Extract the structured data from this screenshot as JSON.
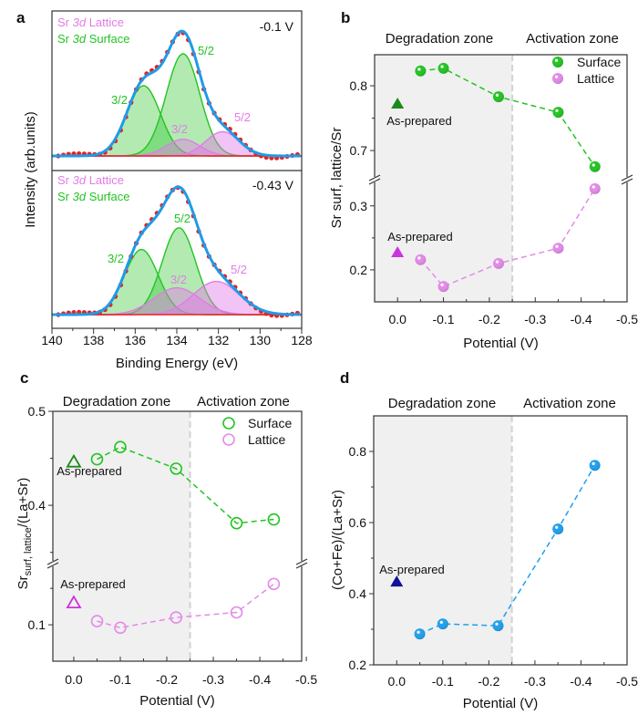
{
  "figure": {
    "panel_labels": [
      "a",
      "b",
      "c",
      "d"
    ]
  },
  "chart_data": [
    {
      "panel": "a",
      "type": "line",
      "xlabel": "Binding Energy (eV)",
      "ylabel": "Intensity (arb.units)",
      "xlim": [
        140,
        128
      ],
      "x_ticks": [
        140,
        138,
        136,
        134,
        132,
        130,
        128
      ],
      "x_tick_labels": [
        "140",
        "138",
        "136",
        "134",
        "132",
        "130",
        "128"
      ],
      "colors": {
        "surface": "#22c422",
        "lattice": "#e37be8",
        "envelope": "#1e9be8",
        "data": "#e52222"
      },
      "subplots": [
        {
          "potential_label": "-0.1 V",
          "legend": [
            {
              "prefix": "Sr ",
              "orbital": "3d",
              "suffix": " Lattice",
              "component": "lattice"
            },
            {
              "prefix": "Sr ",
              "orbital": "3d",
              "suffix": " Surface",
              "component": "surface"
            }
          ],
          "peaks": [
            {
              "component": "surface",
              "label": "3/2",
              "center": 135.6,
              "intensity": 0.55,
              "fwhm": 1.9
            },
            {
              "component": "surface",
              "label": "5/2",
              "center": 133.7,
              "intensity": 0.8,
              "fwhm": 1.9
            },
            {
              "component": "lattice",
              "label": "3/2",
              "center": 133.7,
              "intensity": 0.13,
              "fwhm": 1.9
            },
            {
              "component": "lattice",
              "label": "5/2",
              "center": 131.8,
              "intensity": 0.19,
              "fwhm": 1.9
            }
          ]
        },
        {
          "potential_label": "-0.43 V",
          "legend": [
            {
              "prefix": "Sr ",
              "orbital": "3d",
              "suffix": " Lattice",
              "component": "lattice"
            },
            {
              "prefix": "Sr ",
              "orbital": "3d",
              "suffix": " Surface",
              "component": "surface"
            }
          ],
          "peaks": [
            {
              "component": "surface",
              "label": "3/2",
              "center": 135.7,
              "intensity": 0.51,
              "fwhm": 1.9
            },
            {
              "component": "surface",
              "label": "5/2",
              "center": 133.9,
              "intensity": 0.68,
              "fwhm": 1.9
            },
            {
              "component": "lattice",
              "label": "3/2",
              "center": 134.0,
              "intensity": 0.21,
              "fwhm": 2.6
            },
            {
              "component": "lattice",
              "label": "5/2",
              "center": 132.1,
              "intensity": 0.26,
              "fwhm": 2.6
            }
          ]
        }
      ]
    },
    {
      "panel": "b",
      "type": "line",
      "xlabel": "Potential (V)",
      "ylabel": "Sr surf, lattice/Sr",
      "zones": {
        "degradation": "Degradation zone",
        "activation": "Activation zone",
        "boundary": -0.25
      },
      "xlim": [
        0.05,
        -0.5
      ],
      "x_ticks": [
        0,
        -0.1,
        -0.2,
        -0.3,
        -0.4,
        -0.5
      ],
      "x_tick_labels": [
        "0.0",
        "-0.1",
        "-0.2",
        "-0.3",
        "-0.4",
        "-0.5"
      ],
      "y_axis_break": true,
      "y_segments": [
        {
          "ylim": [
            0.15,
            0.341
          ],
          "ticks": [
            0.2,
            0.3
          ],
          "tick_labels": [
            "0.2",
            "0.3"
          ],
          "minor": [
            0.25
          ]
        },
        {
          "ylim": [
            0.655,
            0.848
          ],
          "ticks": [
            0.7,
            0.8
          ],
          "tick_labels": [
            "0.7",
            "0.8"
          ],
          "minor": [
            0.75
          ]
        }
      ],
      "marker": "sphere",
      "legend": "top-right",
      "series": [
        {
          "name": "Surface",
          "color": "#22c422",
          "x": [
            -0.05,
            -0.1,
            -0.22,
            -0.35,
            -0.43
          ],
          "y": [
            0.823,
            0.827,
            0.783,
            0.759,
            0.675
          ]
        },
        {
          "name": "Lattice",
          "color": "#e48ae8",
          "x": [
            -0.05,
            -0.1,
            -0.22,
            -0.35,
            -0.43
          ],
          "y": [
            0.216,
            0.174,
            0.21,
            0.234,
            0.327
          ]
        }
      ],
      "as_prepared": [
        {
          "label": "As-prepared",
          "series": "Surface",
          "x": 0,
          "y": 0.772,
          "color": "#1a8a1a"
        },
        {
          "label": "As-prepared",
          "series": "Lattice",
          "x": 0,
          "y": 0.227,
          "color": "#cc33dd"
        }
      ]
    },
    {
      "panel": "c",
      "type": "line",
      "xlabel": "Potential (V)",
      "ylabel": {
        "main": "Sr",
        "subscript": "surf, lattice",
        "suffix": "/(La+Sr)"
      },
      "zones": {
        "degradation": "Degradation zone",
        "activation": "Activation zone",
        "boundary": -0.25
      },
      "xlim": [
        0.045,
        -0.49
      ],
      "x_ticks": [
        0,
        -0.1,
        -0.2,
        -0.3,
        -0.4,
        -0.5
      ],
      "x_tick_labels": [
        "0.0",
        "-0.1",
        "-0.2",
        "-0.3",
        "-0.4",
        "-0.5"
      ],
      "y_axis_break": true,
      "y_segments": [
        {
          "ylim": [
            0.05,
            0.184
          ],
          "ticks": [
            0.1
          ],
          "tick_labels": [
            "0.1"
          ],
          "minor": [
            0.15
          ]
        },
        {
          "ylim": [
            0.338,
            0.5
          ],
          "ticks": [
            0.4,
            0.5
          ],
          "tick_labels": [
            "0.4",
            "0.5"
          ],
          "minor": [
            0.35,
            0.45
          ]
        }
      ],
      "marker": "open-circle",
      "legend": "top-right",
      "series": [
        {
          "name": "Surface",
          "color": "#22c422",
          "x": [
            -0.05,
            -0.1,
            -0.22,
            -0.35,
            -0.43
          ],
          "y": [
            0.449,
            0.462,
            0.439,
            0.381,
            0.385
          ]
        },
        {
          "name": "Lattice",
          "color": "#e48ae8",
          "x": [
            -0.05,
            -0.1,
            -0.22,
            -0.35,
            -0.43
          ],
          "y": [
            0.105,
            0.096,
            0.11,
            0.117,
            0.156
          ]
        }
      ],
      "as_prepared": [
        {
          "label": "As-prepared",
          "series": "Surface",
          "x": 0,
          "y": 0.446,
          "color": "#1a8a1a"
        },
        {
          "label": "As-prepared",
          "series": "Lattice",
          "x": 0,
          "y": 0.13,
          "color": "#cc33dd"
        }
      ]
    },
    {
      "panel": "d",
      "type": "line",
      "xlabel": "Potential (V)",
      "ylabel": "(Co+Fe)/(La+Sr)",
      "zones": {
        "degradation": "Degradation zone",
        "activation": "Activation zone",
        "boundary": -0.25
      },
      "xlim": [
        0.05,
        -0.5
      ],
      "x_ticks": [
        0,
        -0.1,
        -0.2,
        -0.3,
        -0.4,
        -0.5
      ],
      "x_tick_labels": [
        "0.0",
        "-0.1",
        "-0.2",
        "-0.3",
        "-0.4",
        "-0.5"
      ],
      "y_axis_break": false,
      "y_segments": [
        {
          "ylim": [
            0.2,
            0.9
          ],
          "ticks": [
            0.2,
            0.4,
            0.6,
            0.8
          ],
          "tick_labels": [
            "0.2",
            "0.4",
            "0.6",
            "0.8"
          ],
          "minor": [
            0.3,
            0.5,
            0.7
          ]
        }
      ],
      "marker": "sphere",
      "series": [
        {
          "color": "#1ea0ee",
          "x": [
            -0.05,
            -0.1,
            -0.22,
            -0.35,
            -0.43
          ],
          "y": [
            0.287,
            0.315,
            0.31,
            0.582,
            0.761
          ]
        }
      ],
      "as_prepared": [
        {
          "label": "As-prepared",
          "x": 0,
          "y": 0.433,
          "color": "#10109a"
        }
      ]
    }
  ]
}
